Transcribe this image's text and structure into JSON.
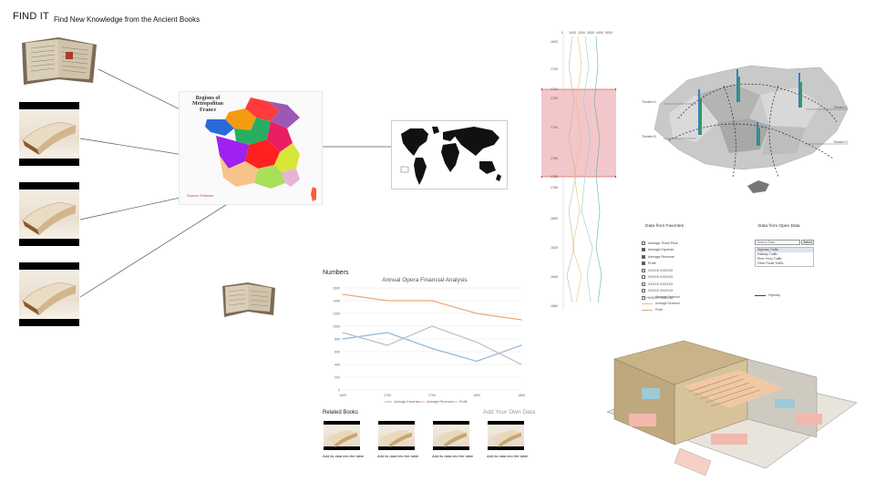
{
  "header": {
    "brand": "FIND IT",
    "tagline": "Find New Knowledge from the Ancient Books"
  },
  "france_map": {
    "title": "Regions of Metropolitan France",
    "caption": "Source: Francec"
  },
  "numbers": {
    "label": "Numbers"
  },
  "chart_data": {
    "type": "line",
    "title": "Annual Opera Financial Analysis",
    "x": [
      1600,
      1700,
      1750,
      1800,
      1850
    ],
    "ylim": [
      0,
      1600
    ],
    "yticks": [
      0,
      200,
      400,
      600,
      800,
      1000,
      1200,
      1400,
      1600
    ],
    "series": [
      {
        "name": "Average Expense",
        "values": [
          800,
          900,
          650,
          450,
          700
        ],
        "color": "#8fb8de"
      },
      {
        "name": "Average Revenue",
        "values": [
          1500,
          1400,
          1400,
          1200,
          1100
        ],
        "color": "#f0a77a"
      },
      {
        "name": "Profit",
        "values": [
          900,
          700,
          1000,
          750,
          400
        ],
        "color": "#bdbdbd"
      }
    ],
    "legend": "bottom",
    "grid": true
  },
  "related": {
    "label": "Related Books",
    "add_own": "Add Your Own Data",
    "items": [
      {
        "caption": "Add its data into the table"
      },
      {
        "caption": "Add its data into the table"
      },
      {
        "caption": "Add its data into the table"
      },
      {
        "caption": "Add its data into the table"
      }
    ]
  },
  "parallel": {
    "top_ticks": [
      "0",
      "1000",
      "2000",
      "3000",
      "4000",
      "5000"
    ],
    "row_ticks": [
      "1600",
      "1700",
      "1712",
      "1720",
      "1740",
      "1760",
      "1763",
      "1780",
      "1800",
      "1820",
      "1840",
      "1860"
    ],
    "highlight_color": "#f0b8bd"
  },
  "region_map": {
    "labels": [
      "Theatre A",
      "Theatre B",
      "Theatre C",
      "Theatre D"
    ]
  },
  "favorites": {
    "title": "Data from Favorites",
    "items": [
      {
        "label": "Average Ticket Price",
        "checked": false
      },
      {
        "label": "Average Expense",
        "checked": true
      },
      {
        "label": "Average Revenue",
        "checked": true
      },
      {
        "label": "Profit",
        "checked": true
      },
      {
        "label": "XXXXX XXXXXX",
        "checked": false
      },
      {
        "label": "XXXXX XXXXXX",
        "checked": false
      },
      {
        "label": "XXXXX XXXXXX",
        "checked": false
      },
      {
        "label": "XXXXX XXXXXX",
        "checked": false
      },
      {
        "label": "XXXXX XXXXXX",
        "checked": false
      }
    ],
    "legend": [
      {
        "label": "Average Expense",
        "color": "#8fd0c7"
      },
      {
        "label": "Average Revenue",
        "color": "#e3c27a"
      },
      {
        "label": "Profit",
        "color": "#c6b38f"
      }
    ]
  },
  "opendata": {
    "title": "Data from Open Data",
    "search_placeholder": "Search Data",
    "search_button": "Select",
    "options": [
      {
        "label": "Highway Traffic",
        "selected": true
      },
      {
        "label": "Railway Traffic",
        "selected": false
      },
      {
        "label": "River Ferry Traffic",
        "selected": false
      },
      {
        "label": "Other Route Traffic",
        "selected": false
      }
    ],
    "legend": {
      "label": "Highway",
      "color": "#444444"
    }
  }
}
